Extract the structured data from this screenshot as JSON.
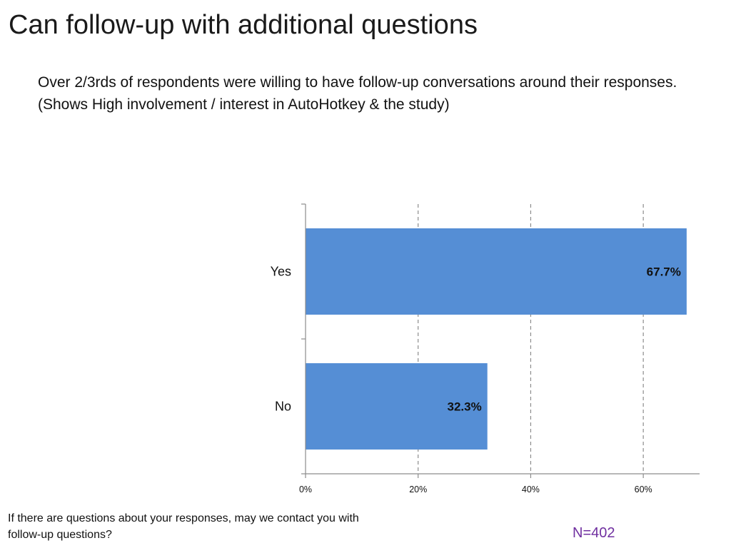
{
  "slide": {
    "title": "Can follow-up with additional questions",
    "subtitle": "Over 2/3rds of respondents were willing to have follow-up conversations around their responses.  (Shows High involvement / interest in AutoHotkey & the study)",
    "footnote": "If there are questions about your responses, may we contact you with follow-up questions?",
    "sample_size": "N=402"
  },
  "chart_data": {
    "type": "bar",
    "orientation": "horizontal",
    "categories": [
      "Yes",
      "No"
    ],
    "values": [
      67.7,
      32.3
    ],
    "data_labels": [
      "67.7%",
      "32.3%"
    ],
    "xlim": [
      0,
      70
    ],
    "x_ticks": [
      0,
      20,
      40,
      60
    ],
    "x_tick_labels": [
      "0%",
      "20%",
      "40%",
      "60%"
    ],
    "grid": "vertical-dashed",
    "bar_color": "#558ed5",
    "grid_color": "#8c8c8c",
    "axis_color": "#8c8c8c"
  }
}
